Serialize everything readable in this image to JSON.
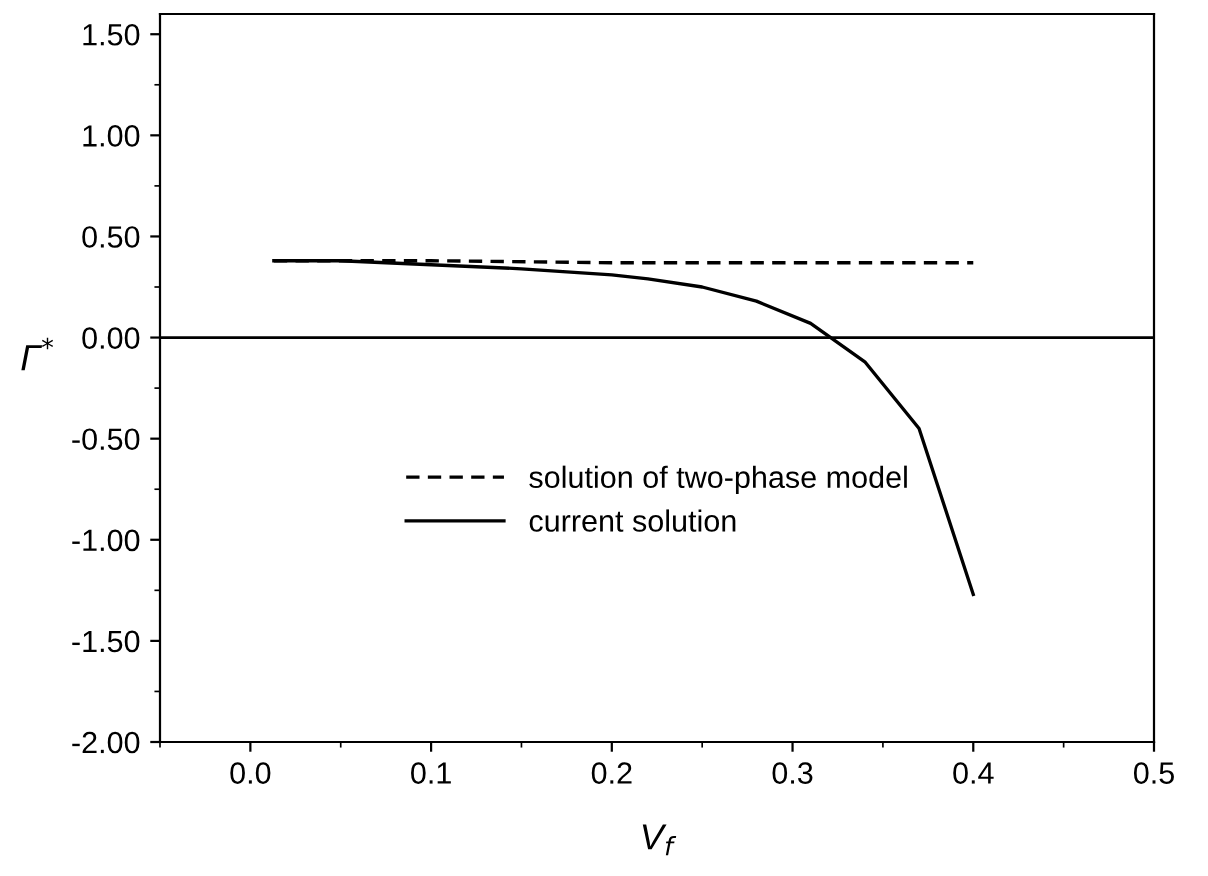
{
  "chart_data": {
    "type": "line",
    "xlabel": "V$_{f}$",
    "ylabel": "Γ$^{*}$",
    "series": [
      {
        "name": "solution of two-phase model",
        "color": "#000000",
        "line_style": "dashed",
        "x": [
          0.013,
          0.1,
          0.2,
          0.3,
          0.4
        ],
        "values": [
          0.38,
          0.38,
          0.37,
          0.37,
          0.37
        ]
      },
      {
        "name": "current solution",
        "color": "#000000",
        "line_style": "solid",
        "x": [
          0.013,
          0.05,
          0.1,
          0.15,
          0.2,
          0.22,
          0.25,
          0.28,
          0.31,
          0.34,
          0.37,
          0.4
        ],
        "values": [
          0.38,
          0.38,
          0.36,
          0.34,
          0.31,
          0.29,
          0.25,
          0.18,
          0.07,
          -0.12,
          -0.45,
          -1.27
        ]
      }
    ],
    "ref_lines": [
      {
        "axis": "y",
        "value": 0,
        "color": "#000000",
        "line_style": "solid"
      }
    ],
    "xlim": [
      -0.05,
      0.5
    ],
    "xticks": [
      {
        "value": 0,
        "label": "0.0"
      },
      0.1,
      0.2,
      0.3,
      0.4,
      0.5
    ],
    "ylim": [
      -2.0,
      1.6
    ],
    "yticks": [
      {
        "value": -2,
        "label": "-2.00"
      },
      {
        "value": -1.5,
        "label": "-1.50"
      },
      {
        "value": -1,
        "label": "-1.00"
      },
      {
        "value": -0.5,
        "label": "-0.50"
      },
      {
        "value": 0,
        "label": "0.00"
      },
      {
        "value": 0.5,
        "label": "0.50"
      },
      {
        "value": 1,
        "label": "1.00"
      },
      {
        "value": 1.5,
        "label": "1.50"
      }
    ],
    "grid": false,
    "legend": "left",
    "marker": "none"
  }
}
